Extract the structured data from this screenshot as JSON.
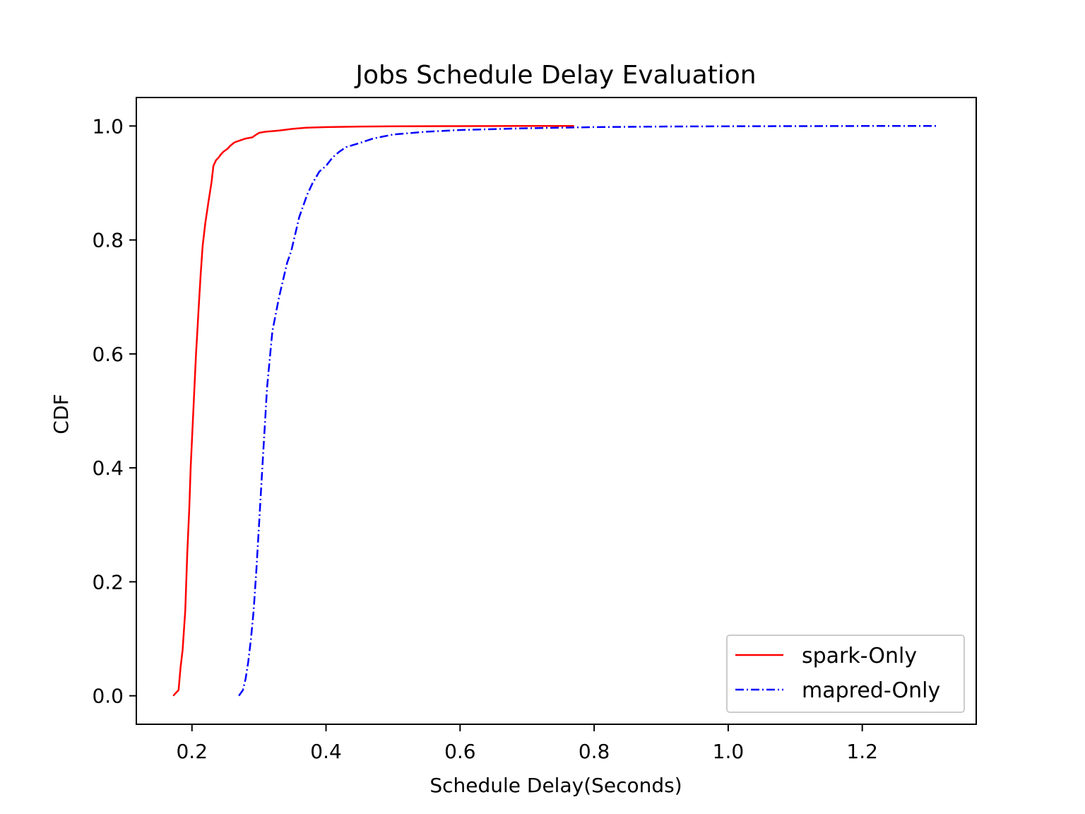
{
  "chart_data": {
    "type": "line",
    "title": "Jobs Schedule Delay Evaluation",
    "xlabel": "Schedule Delay(Seconds)",
    "ylabel": "CDF",
    "xlim": [
      0.117,
      1.37
    ],
    "ylim": [
      -0.05,
      1.05
    ],
    "xticks": [
      0.2,
      0.4,
      0.6,
      0.8,
      1.0,
      1.2
    ],
    "xtick_labels": [
      "0.2",
      "0.4",
      "0.6",
      "0.8",
      "1.0",
      "1.2"
    ],
    "yticks": [
      0.0,
      0.2,
      0.4,
      0.6,
      0.8,
      1.0
    ],
    "ytick_labels": [
      "0.0",
      "0.2",
      "0.4",
      "0.6",
      "0.8",
      "1.0"
    ],
    "grid": false,
    "legend_position": "lower right",
    "series": [
      {
        "name": "spark-Only",
        "color": "#ff0000",
        "style": "solid",
        "x": [
          0.172,
          0.18,
          0.183,
          0.186,
          0.19,
          0.193,
          0.196,
          0.198,
          0.2,
          0.202,
          0.204,
          0.206,
          0.208,
          0.21,
          0.213,
          0.216,
          0.22,
          0.225,
          0.229,
          0.232,
          0.236,
          0.24,
          0.243,
          0.247,
          0.253,
          0.257,
          0.262,
          0.265,
          0.27,
          0.28,
          0.29,
          0.296,
          0.3,
          0.31,
          0.33,
          0.35,
          0.37,
          0.4,
          0.45,
          0.5,
          0.6,
          0.7,
          0.77
        ],
        "y": [
          0.0,
          0.01,
          0.05,
          0.08,
          0.15,
          0.25,
          0.33,
          0.4,
          0.45,
          0.5,
          0.55,
          0.6,
          0.64,
          0.68,
          0.74,
          0.79,
          0.83,
          0.87,
          0.9,
          0.93,
          0.94,
          0.945,
          0.95,
          0.955,
          0.96,
          0.965,
          0.97,
          0.972,
          0.974,
          0.978,
          0.98,
          0.985,
          0.988,
          0.99,
          0.992,
          0.995,
          0.997,
          0.998,
          0.999,
          0.9995,
          0.9998,
          1.0,
          1.0
        ]
      },
      {
        "name": "mapred-Only",
        "color": "#0000ff",
        "style": "dashdot",
        "x": [
          0.27,
          0.276,
          0.28,
          0.284,
          0.288,
          0.292,
          0.296,
          0.3,
          0.303,
          0.306,
          0.309,
          0.312,
          0.316,
          0.32,
          0.325,
          0.33,
          0.336,
          0.342,
          0.348,
          0.354,
          0.36,
          0.366,
          0.372,
          0.38,
          0.39,
          0.4,
          0.41,
          0.42,
          0.43,
          0.45,
          0.47,
          0.5,
          0.55,
          0.6,
          0.7,
          0.8,
          0.9,
          1.0,
          1.1,
          1.2,
          1.31
        ],
        "y": [
          0.0,
          0.01,
          0.03,
          0.06,
          0.1,
          0.15,
          0.22,
          0.3,
          0.36,
          0.42,
          0.48,
          0.54,
          0.59,
          0.64,
          0.67,
          0.7,
          0.73,
          0.76,
          0.78,
          0.81,
          0.84,
          0.86,
          0.88,
          0.9,
          0.92,
          0.93,
          0.945,
          0.955,
          0.963,
          0.97,
          0.978,
          0.985,
          0.99,
          0.993,
          0.996,
          0.998,
          0.999,
          0.9995,
          0.9998,
          1.0,
          1.0
        ]
      }
    ]
  }
}
